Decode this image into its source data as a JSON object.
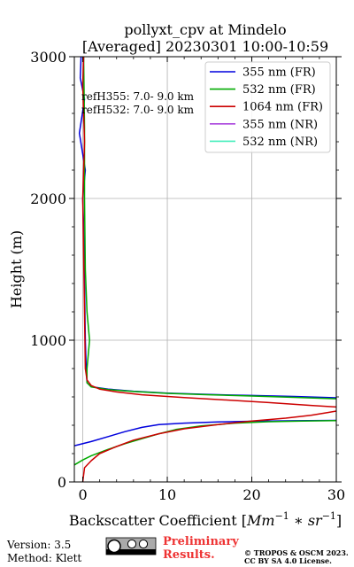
{
  "chart_data": {
    "type": "line",
    "title_line1": "pollyxt_cpv at Mindelo",
    "title_line2": "[Averaged] 20230301 10:00-10:59",
    "xlabel_prefix": "Backscatter Coefficient [",
    "xlabel_math": "Mm",
    "xlabel_sup1": "−1",
    "xlabel_mid": " ∗ ",
    "xlabel_math2": "sr",
    "xlabel_sup2": "−1",
    "xlabel_suffix": "]",
    "ylabel": "Height (m)",
    "xlim": [
      -1,
      30
    ],
    "ylim": [
      0,
      3000
    ],
    "x_ticks": [
      0,
      10,
      20,
      30
    ],
    "x_tick_labels": [
      "0",
      "10",
      "20",
      "30"
    ],
    "y_ticks": [
      0,
      1000,
      2000,
      3000
    ],
    "y_tick_labels": [
      "0",
      "1000",
      "2000",
      "3000"
    ],
    "grid": true,
    "legend_position": "top-right",
    "annotations": [
      "refH355:  7.0- 9.0 km",
      "refH532:  7.0- 9.0 km"
    ],
    "series": [
      {
        "name": "355 nm (FR)",
        "color": "#0000dd",
        "points": [
          [
            -1,
            255
          ],
          [
            1,
            285
          ],
          [
            3,
            320
          ],
          [
            5,
            355
          ],
          [
            7,
            385
          ],
          [
            9,
            405
          ],
          [
            12,
            415
          ],
          [
            16,
            423
          ],
          [
            20,
            428
          ],
          [
            25,
            432
          ],
          [
            31,
            435
          ],
          [
            31,
            592
          ],
          [
            25,
            603
          ],
          [
            20,
            610
          ],
          [
            15,
            617
          ],
          [
            10,
            627
          ],
          [
            6,
            640
          ],
          [
            3,
            655
          ],
          [
            1,
            672
          ],
          [
            0.5,
            700
          ],
          [
            0.4,
            800
          ],
          [
            0.3,
            1000
          ],
          [
            0.2,
            1400
          ],
          [
            0.1,
            1800
          ],
          [
            0,
            2000
          ],
          [
            0.3,
            2200
          ],
          [
            -0.4,
            2460
          ],
          [
            0.2,
            2700
          ],
          [
            -0.3,
            2850
          ],
          [
            -0.2,
            3000
          ]
        ]
      },
      {
        "name": "532 nm (FR)",
        "color": "#00aa00",
        "points": [
          [
            -1,
            120
          ],
          [
            0,
            155
          ],
          [
            1,
            185
          ],
          [
            3,
            230
          ],
          [
            5,
            270
          ],
          [
            7,
            305
          ],
          [
            9,
            340
          ],
          [
            11,
            370
          ],
          [
            14,
            395
          ],
          [
            18,
            415
          ],
          [
            22,
            425
          ],
          [
            26,
            430
          ],
          [
            31,
            433
          ],
          [
            31,
            585
          ],
          [
            25,
            597
          ],
          [
            20,
            606
          ],
          [
            15,
            615
          ],
          [
            10,
            625
          ],
          [
            6,
            638
          ],
          [
            3,
            652
          ],
          [
            1,
            670
          ],
          [
            0.5,
            700
          ],
          [
            0.5,
            800
          ],
          [
            0.8,
            1000
          ],
          [
            0.5,
            1200
          ],
          [
            0.3,
            1500
          ],
          [
            0.2,
            2000
          ],
          [
            0.2,
            2500
          ],
          [
            0.1,
            3000
          ]
        ]
      },
      {
        "name": "1064 nm (FR)",
        "color": "#cc0000",
        "points": [
          [
            0,
            0
          ],
          [
            0.2,
            100
          ],
          [
            1,
            150
          ],
          [
            2,
            200
          ],
          [
            4,
            250
          ],
          [
            6,
            295
          ],
          [
            9,
            340
          ],
          [
            12,
            375
          ],
          [
            16,
            405
          ],
          [
            20,
            430
          ],
          [
            24,
            450
          ],
          [
            27,
            470
          ],
          [
            29,
            490
          ],
          [
            31,
            510
          ],
          [
            31,
            525
          ],
          [
            27,
            540
          ],
          [
            22,
            560
          ],
          [
            17,
            578
          ],
          [
            12,
            595
          ],
          [
            7,
            615
          ],
          [
            4,
            635
          ],
          [
            2,
            655
          ],
          [
            1,
            680
          ],
          [
            0.5,
            720
          ],
          [
            0.3,
            800
          ],
          [
            0.2,
            1200
          ],
          [
            0.1,
            1600
          ],
          [
            0,
            2000
          ],
          [
            0.2,
            2400
          ],
          [
            0,
            2800
          ],
          [
            0.1,
            3000
          ]
        ]
      },
      {
        "name": "355 nm (NR)",
        "color": "#aa44dd",
        "points": []
      },
      {
        "name": "532 nm (NR)",
        "color": "#44eebb",
        "points": []
      }
    ]
  },
  "footer": {
    "version": "Version: 3.5",
    "method": "Method: Klett",
    "preliminary_line1": "Preliminary",
    "preliminary_line2": "Results.",
    "copyright_line1": "© TROPOS & OSCM 2023.",
    "copyright_line2": "CC BY SA 4.0 License.",
    "preliminary_color": "#ee3333"
  }
}
